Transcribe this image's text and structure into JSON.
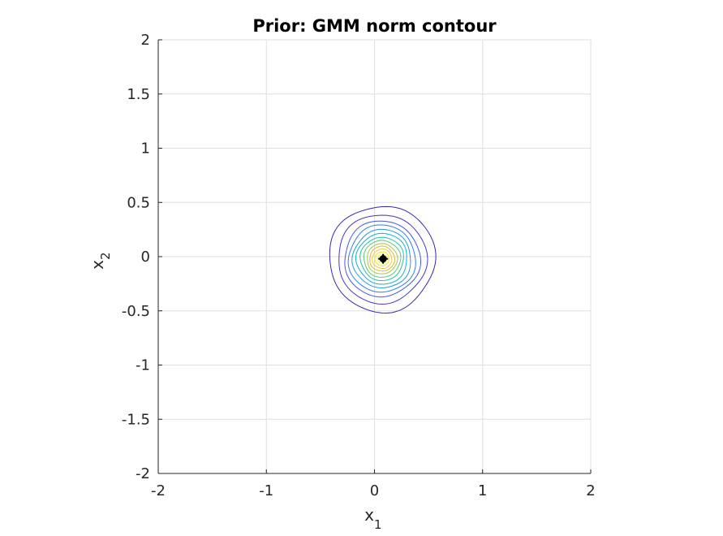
{
  "chart_data": {
    "type": "contour",
    "title": "Prior: GMM norm contour",
    "xlabel": "x",
    "xlabel_sub": "1",
    "ylabel": "x",
    "ylabel_sub": "2",
    "xlim": [
      -2,
      2
    ],
    "ylim": [
      -2,
      2
    ],
    "xticks": [
      {
        "value": -2,
        "label": "-2"
      },
      {
        "value": -1,
        "label": "-1"
      },
      {
        "value": 0,
        "label": "0"
      },
      {
        "value": 1,
        "label": "1"
      },
      {
        "value": 2,
        "label": "2"
      }
    ],
    "yticks": [
      {
        "value": 2,
        "label": "2"
      },
      {
        "value": 1.5,
        "label": "1.5"
      },
      {
        "value": 1,
        "label": "1"
      },
      {
        "value": 0.5,
        "label": "0.5"
      },
      {
        "value": 0,
        "label": "0"
      },
      {
        "value": -0.5,
        "label": "-0.5"
      },
      {
        "value": -1,
        "label": "-1"
      },
      {
        "value": -1.5,
        "label": "-1.5"
      },
      {
        "value": -2,
        "label": "-2"
      }
    ],
    "grid": true,
    "contour_center": [
      0.07,
      -0.02
    ],
    "contour_levels": [
      {
        "radius": 0.49,
        "color": "#3e26a8"
      },
      {
        "radius": 0.41,
        "color": "#4636c8"
      },
      {
        "radius": 0.35,
        "color": "#4457e8"
      },
      {
        "radius": 0.31,
        "color": "#2f7ef6"
      },
      {
        "radius": 0.27,
        "color": "#1f9ae3"
      },
      {
        "radius": 0.235,
        "color": "#0fb2cf"
      },
      {
        "radius": 0.2,
        "color": "#28bfa4"
      },
      {
        "radius": 0.17,
        "color": "#60c776"
      },
      {
        "radius": 0.14,
        "color": "#a4c54a"
      },
      {
        "radius": 0.115,
        "color": "#dcb936"
      },
      {
        "radius": 0.09,
        "color": "#f9c932"
      },
      {
        "radius": 0.065,
        "color": "#f5e123"
      },
      {
        "radius": 0.04,
        "color": "#f9fb0e"
      }
    ],
    "marker": {
      "x": 0.08,
      "y": -0.02,
      "color": "#000000"
    }
  }
}
